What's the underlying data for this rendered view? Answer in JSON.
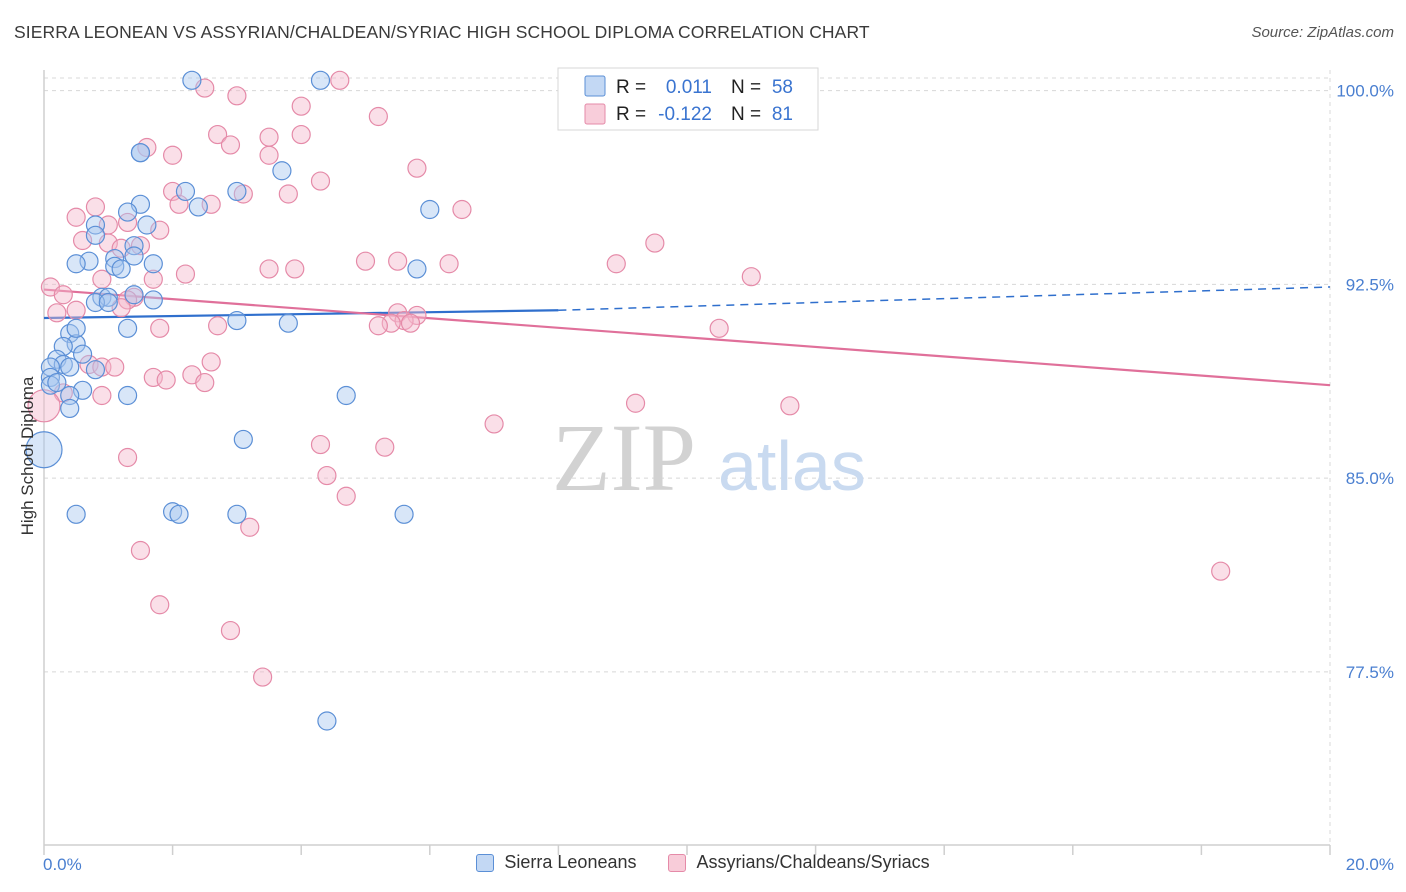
{
  "header": {
    "title": "SIERRA LEONEAN VS ASSYRIAN/CHALDEAN/SYRIAC HIGH SCHOOL DIPLOMA CORRELATION CHART",
    "source": "Source: ZipAtlas.com"
  },
  "watermark": {
    "zip": "ZIP",
    "atlas": "atlas"
  },
  "colors": {
    "blue_fill": "#a9c8f0",
    "blue_stroke": "#5b8fd6",
    "blue_line": "#2f6fcd",
    "pink_fill": "#f5b8cb",
    "pink_stroke": "#e58aa8",
    "pink_line": "#e0709a",
    "grid": "#d8d8d8",
    "tick_text": "#4a7fd0"
  },
  "legend_box": {
    "rows": [
      {
        "r_label": "R =",
        "r_value": "0.011",
        "n_label": "N =",
        "n_value": "58"
      },
      {
        "r_label": "R =",
        "r_value": "-0.122",
        "n_label": "N =",
        "n_value": "81"
      }
    ]
  },
  "bottom_legend": {
    "items": [
      {
        "label": "Sierra Leoneans"
      },
      {
        "label": "Assyrians/Chaldeans/Syriacs"
      }
    ]
  },
  "chart_data": {
    "type": "scatter",
    "title": "SIERRA LEONEAN VS ASSYRIAN/CHALDEAN/SYRIAC HIGH SCHOOL DIPLOMA CORRELATION CHART",
    "xlabel": "",
    "ylabel": "High School Diploma",
    "xlim": [
      0,
      20
    ],
    "ylim": [
      70.8,
      100.8
    ],
    "x_tick_labels": {
      "min": "0.0%",
      "max": "20.0%"
    },
    "y_ticks": [
      {
        "value": 100.0,
        "label": "100.0%"
      },
      {
        "value": 92.5,
        "label": "92.5%"
      },
      {
        "value": 85.0,
        "label": "85.0%"
      },
      {
        "value": 77.5,
        "label": "77.5%"
      }
    ],
    "grid": true,
    "legend": "top-center",
    "series": [
      {
        "name": "Sierra Leoneans",
        "r": 0.011,
        "n": 58,
        "trend": {
          "x": [
            0,
            8
          ],
          "y": [
            91.2,
            91.5
          ],
          "dashed_to": [
            20,
            92.4
          ]
        },
        "points": [
          [
            2.3,
            100.4
          ],
          [
            4.3,
            100.4
          ],
          [
            1.5,
            97.6
          ],
          [
            1.5,
            97.6
          ],
          [
            3.7,
            96.9
          ],
          [
            2.2,
            96.1
          ],
          [
            3.0,
            96.1
          ],
          [
            1.5,
            95.6
          ],
          [
            2.4,
            95.5
          ],
          [
            6.0,
            95.4
          ],
          [
            1.3,
            95.3
          ],
          [
            0.8,
            94.8
          ],
          [
            1.6,
            94.8
          ],
          [
            0.8,
            94.4
          ],
          [
            1.4,
            94.0
          ],
          [
            1.4,
            93.6
          ],
          [
            1.1,
            93.5
          ],
          [
            0.7,
            93.4
          ],
          [
            0.5,
            93.3
          ],
          [
            1.7,
            93.3
          ],
          [
            1.1,
            93.2
          ],
          [
            1.2,
            93.1
          ],
          [
            5.8,
            93.1
          ],
          [
            1.4,
            92.1
          ],
          [
            0.9,
            92.0
          ],
          [
            1.0,
            92.0
          ],
          [
            1.7,
            91.9
          ],
          [
            0.8,
            91.8
          ],
          [
            1.0,
            91.8
          ],
          [
            3.0,
            91.1
          ],
          [
            3.8,
            91.0
          ],
          [
            1.3,
            90.8
          ],
          [
            0.4,
            90.6
          ],
          [
            0.5,
            90.2
          ],
          [
            0.3,
            90.1
          ],
          [
            0.6,
            89.8
          ],
          [
            0.2,
            89.6
          ],
          [
            0.3,
            89.4
          ],
          [
            0.4,
            89.3
          ],
          [
            0.8,
            89.2
          ],
          [
            0.1,
            89.3
          ],
          [
            0.1,
            88.9
          ],
          [
            0.1,
            88.6
          ],
          [
            0.6,
            88.4
          ],
          [
            4.7,
            88.2
          ],
          [
            0.4,
            88.2
          ],
          [
            1.3,
            88.2
          ],
          [
            0.4,
            87.7
          ],
          [
            3.1,
            86.5
          ],
          [
            0.0,
            86.1
          ],
          [
            0.5,
            83.6
          ],
          [
            2.0,
            83.7
          ],
          [
            2.1,
            83.6
          ],
          [
            3.0,
            83.6
          ],
          [
            5.6,
            83.6
          ],
          [
            4.4,
            75.6
          ],
          [
            0.2,
            88.7
          ],
          [
            0.5,
            90.8
          ]
        ]
      },
      {
        "name": "Assyrians/Chaldeans/Syriacs",
        "r": -0.122,
        "n": 81,
        "trend": {
          "x": [
            0,
            20
          ],
          "y": [
            92.3,
            88.6
          ]
        },
        "points": [
          [
            4.6,
            100.4
          ],
          [
            2.5,
            100.1
          ],
          [
            3.0,
            99.8
          ],
          [
            4.0,
            99.4
          ],
          [
            5.2,
            99.0
          ],
          [
            4.0,
            98.3
          ],
          [
            2.7,
            98.3
          ],
          [
            3.5,
            98.2
          ],
          [
            2.9,
            97.9
          ],
          [
            1.6,
            97.8
          ],
          [
            2.0,
            97.5
          ],
          [
            3.5,
            97.5
          ],
          [
            5.8,
            97.0
          ],
          [
            4.3,
            96.5
          ],
          [
            2.0,
            96.1
          ],
          [
            3.1,
            96.0
          ],
          [
            3.8,
            96.0
          ],
          [
            2.1,
            95.6
          ],
          [
            2.6,
            95.6
          ],
          [
            0.8,
            95.5
          ],
          [
            6.5,
            95.4
          ],
          [
            0.5,
            95.1
          ],
          [
            1.3,
            94.9
          ],
          [
            1.0,
            94.8
          ],
          [
            1.8,
            94.6
          ],
          [
            9.5,
            94.1
          ],
          [
            1.0,
            94.1
          ],
          [
            0.6,
            94.2
          ],
          [
            1.5,
            94.0
          ],
          [
            1.2,
            93.9
          ],
          [
            5.0,
            93.4
          ],
          [
            5.5,
            93.4
          ],
          [
            6.3,
            93.3
          ],
          [
            8.9,
            93.3
          ],
          [
            3.5,
            93.1
          ],
          [
            3.9,
            93.1
          ],
          [
            2.2,
            92.9
          ],
          [
            11.0,
            92.8
          ],
          [
            1.7,
            92.7
          ],
          [
            0.9,
            92.7
          ],
          [
            0.1,
            92.4
          ],
          [
            0.3,
            92.1
          ],
          [
            1.4,
            92.0
          ],
          [
            1.3,
            91.9
          ],
          [
            1.2,
            91.6
          ],
          [
            0.5,
            91.5
          ],
          [
            0.2,
            91.4
          ],
          [
            5.5,
            91.4
          ],
          [
            5.8,
            91.3
          ],
          [
            5.6,
            91.1
          ],
          [
            5.4,
            91.0
          ],
          [
            5.7,
            91.0
          ],
          [
            5.2,
            90.9
          ],
          [
            2.7,
            90.9
          ],
          [
            1.8,
            90.8
          ],
          [
            10.5,
            90.8
          ],
          [
            2.6,
            89.5
          ],
          [
            0.7,
            89.4
          ],
          [
            0.9,
            89.3
          ],
          [
            1.1,
            89.3
          ],
          [
            2.3,
            89.0
          ],
          [
            1.7,
            88.9
          ],
          [
            1.9,
            88.8
          ],
          [
            2.5,
            88.7
          ],
          [
            0.3,
            88.3
          ],
          [
            0.9,
            88.2
          ],
          [
            9.2,
            87.9
          ],
          [
            11.6,
            87.8
          ],
          [
            0.0,
            87.8
          ],
          [
            7.0,
            87.1
          ],
          [
            4.3,
            86.3
          ],
          [
            5.3,
            86.2
          ],
          [
            1.3,
            85.8
          ],
          [
            4.4,
            85.1
          ],
          [
            4.7,
            84.3
          ],
          [
            3.2,
            83.1
          ],
          [
            1.5,
            82.2
          ],
          [
            18.3,
            81.4
          ],
          [
            1.8,
            80.1
          ],
          [
            2.9,
            79.1
          ],
          [
            3.4,
            77.3
          ]
        ]
      }
    ]
  }
}
